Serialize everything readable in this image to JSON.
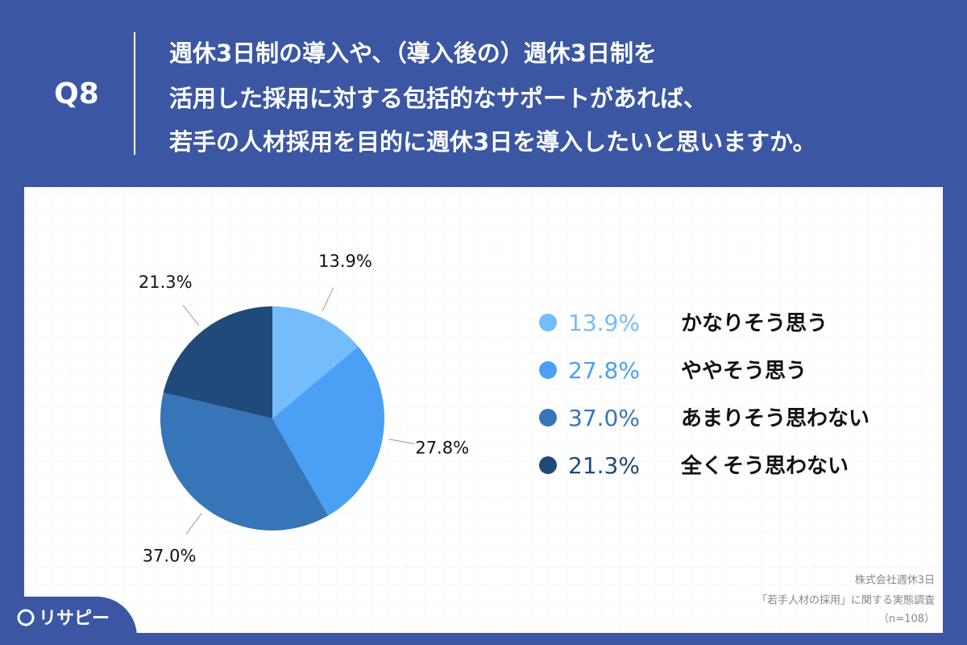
{
  "chart_data": {
    "type": "pie",
    "question_label": "Q8",
    "title": [
      "週休3日制の導入や、（導入後の）週休3日制を",
      "活用した採用に対する包括的なサポートがあれば、",
      "若手の人材採用を目的に週休3日を導入したいと思いますか。"
    ],
    "categories": [
      "かなりそう思う",
      "ややそう思う",
      "あまりそう思わない",
      "全くそう思わない"
    ],
    "values": [
      13.9,
      27.8,
      37.0,
      21.3
    ],
    "value_labels": [
      "13.9%",
      "27.8%",
      "37.0%",
      "21.3%"
    ],
    "colors": [
      "#74bcfa",
      "#4aa0f5",
      "#3675b8",
      "#1f4a7a"
    ],
    "source": [
      "株式会社週休3日",
      "「若手人材の採用」に関する実態調査",
      "（n=108）"
    ],
    "logo": "リサピー"
  }
}
